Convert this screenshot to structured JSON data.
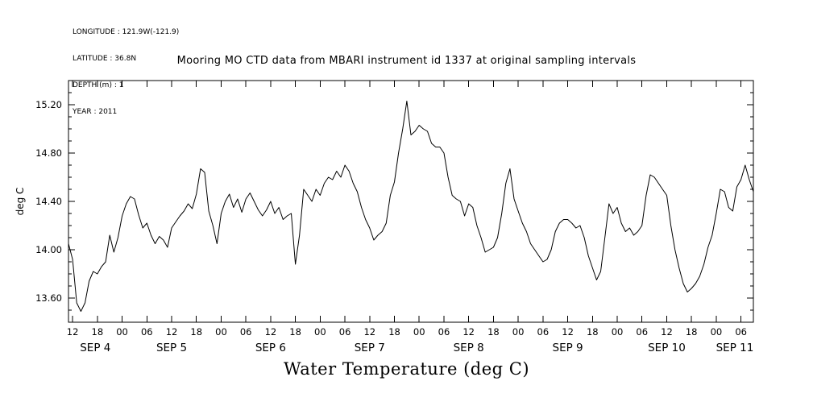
{
  "meta": {
    "lines": [
      "LONGITUDE : 121.9W(-121.9)",
      "LATITUDE : 36.8N",
      "DEPTH (m) : 1",
      "YEAR : 2011"
    ]
  },
  "chart_data": {
    "type": "line",
    "title": "Mooring MO CTD data from MBARI instrument id 1337 at original sampling intervals",
    "xlabel": "Water Temperature (deg C)",
    "ylabel": "deg C",
    "x_axis": "time, hours since 2011-09-04 00:00",
    "xlim": [
      11,
      177
    ],
    "ylim": [
      13.4,
      15.4
    ],
    "grid": false,
    "y_major_ticks": [
      13.6,
      14.0,
      14.4,
      14.8,
      15.2
    ],
    "y_tick_labels": [
      "13.60",
      "14.00",
      "14.40",
      "14.80",
      "15.20"
    ],
    "y_minor_step": 0.1,
    "x_tick_hours": [
      12,
      18,
      24,
      30,
      36,
      42,
      48,
      54,
      60,
      66,
      72,
      78,
      84,
      90,
      96,
      102,
      108,
      114,
      120,
      126,
      132,
      138,
      144,
      150,
      156,
      162,
      168,
      174
    ],
    "x_tick_labels": [
      "12",
      "18",
      "00",
      "06",
      "12",
      "18",
      "00",
      "06",
      "12",
      "18",
      "00",
      "06",
      "12",
      "18",
      "00",
      "06",
      "12",
      "18",
      "00",
      "06",
      "12",
      "18",
      "00",
      "06",
      "12",
      "18",
      "00",
      "06"
    ],
    "day_labels": [
      {
        "label": "SEP 4",
        "hour": 17.5
      },
      {
        "label": "SEP 5",
        "hour": 36
      },
      {
        "label": "SEP 6",
        "hour": 60
      },
      {
        "label": "SEP 7",
        "hour": 84
      },
      {
        "label": "SEP 8",
        "hour": 108
      },
      {
        "label": "SEP 9",
        "hour": 132
      },
      {
        "label": "SEP 10",
        "hour": 156
      },
      {
        "label": "SEP 11",
        "hour": 172.5
      }
    ],
    "series": [
      {
        "name": "water temperature (deg C)",
        "t_start_hour": 11,
        "t_step_hours": 1,
        "temps": [
          14.05,
          13.92,
          13.56,
          13.49,
          13.56,
          13.74,
          13.82,
          13.8,
          13.86,
          13.9,
          14.12,
          13.98,
          14.1,
          14.28,
          14.38,
          14.44,
          14.42,
          14.29,
          14.18,
          14.22,
          14.12,
          14.05,
          14.11,
          14.08,
          14.02,
          14.18,
          14.23,
          14.28,
          14.32,
          14.38,
          14.34,
          14.46,
          14.67,
          14.64,
          14.32,
          14.2,
          14.05,
          14.3,
          14.4,
          14.46,
          14.35,
          14.42,
          14.31,
          14.42,
          14.47,
          14.4,
          14.33,
          14.28,
          14.33,
          14.4,
          14.3,
          14.35,
          14.25,
          14.28,
          14.3,
          13.88,
          14.12,
          14.5,
          14.45,
          14.4,
          14.5,
          14.45,
          14.55,
          14.6,
          14.58,
          14.65,
          14.6,
          14.7,
          14.65,
          14.55,
          14.48,
          14.35,
          14.25,
          14.18,
          14.08,
          14.12,
          14.15,
          14.22,
          14.45,
          14.56,
          14.8,
          15.0,
          15.23,
          14.95,
          14.98,
          15.03,
          15.0,
          14.98,
          14.88,
          14.85,
          14.85,
          14.8,
          14.6,
          14.45,
          14.42,
          14.4,
          14.28,
          14.38,
          14.35,
          14.2,
          14.1,
          13.98,
          14.0,
          14.02,
          14.1,
          14.3,
          14.55,
          14.67,
          14.42,
          14.32,
          14.22,
          14.15,
          14.05,
          14.0,
          13.95,
          13.9,
          13.92,
          14.0,
          14.15,
          14.22,
          14.25,
          14.25,
          14.22,
          14.18,
          14.2,
          14.1,
          13.95,
          13.85,
          13.75,
          13.82,
          14.1,
          14.38,
          14.3,
          14.35,
          14.22,
          14.15,
          14.18,
          14.12,
          14.15,
          14.2,
          14.45,
          14.62,
          14.6,
          14.55,
          14.5,
          14.45,
          14.2,
          14.0,
          13.85,
          13.72,
          13.65,
          13.68,
          13.72,
          13.78,
          13.88,
          14.02,
          14.12,
          14.3,
          14.5,
          14.48,
          14.35,
          14.32,
          14.52,
          14.58,
          14.7,
          14.58,
          14.48
        ]
      }
    ]
  }
}
